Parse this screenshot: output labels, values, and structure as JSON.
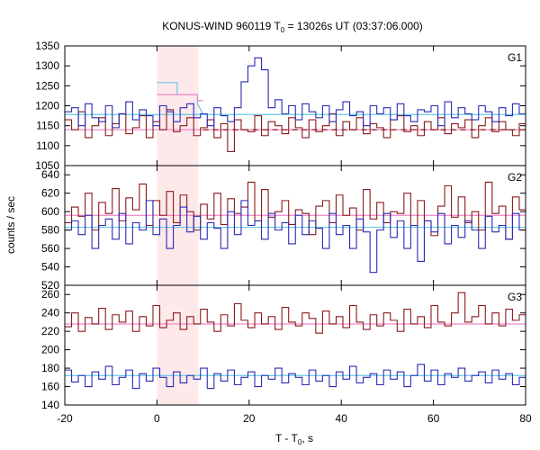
{
  "chart_data": {
    "type": "line",
    "title_main": "KONUS-WIND 960119 T",
    "title_sub": "0",
    "title_rest": " = 13026s UT (03:37:06.000)",
    "ylabel": "counts / sec",
    "xlabel_main": "T - T",
    "xlabel_sub": "0",
    "xlabel_rest": ", s",
    "xlim": [
      -20,
      80
    ],
    "xticks": [
      -20,
      0,
      20,
      40,
      60,
      80
    ],
    "highlight_interval": [
      0,
      9
    ],
    "colors": {
      "red_series": "#8b1a1a",
      "blue_series": "#2b2bb5",
      "red_background": "#ee88cc",
      "blue_background": "#66c8e8",
      "highlight": "#fde8ea"
    },
    "bin_width": 1.472,
    "x_start": -20,
    "panels": [
      {
        "label": "G1",
        "ylim": [
          1050,
          1350
        ],
        "yticks": [
          1050,
          1100,
          1150,
          1200,
          1250,
          1300,
          1350
        ],
        "red_series": [
          1165,
          1140,
          1185,
          1120,
          1150,
          1170,
          1125,
          1155,
          1180,
          1130,
          1145,
          1175,
          1120,
          1160,
          1140,
          1190,
          1135,
          1150,
          1170,
          1125,
          1145,
          1165,
          1120,
          1155,
          1085,
          1165,
          1140,
          1135,
          1175,
          1125,
          1160,
          1150,
          1130,
          1170,
          1145,
          1120,
          1165,
          1135,
          1150,
          1180,
          1125,
          1160,
          1140,
          1170,
          1130,
          1155,
          1145,
          1120,
          1165,
          1175,
          1135,
          1150,
          1125,
          1160,
          1140,
          1170,
          1130,
          1155,
          1145,
          1165,
          1120,
          1150,
          1170,
          1135,
          1160,
          1140,
          1125,
          1155
        ],
        "blue_series": [
          1185,
          1195,
          1150,
          1205,
          1170,
          1160,
          1200,
          1145,
          1180,
          1210,
          1165,
          1190,
          1175,
          1150,
          1200,
          1185,
          1160,
          1195,
          1205,
          1170,
          1180,
          1150,
          1195,
          1175,
          1160,
          1195,
          1260,
          1300,
          1320,
          1290,
          1195,
          1215,
          1180,
          1200,
          1165,
          1205,
          1185,
          1170,
          1200,
          1160,
          1190,
          1210,
          1175,
          1185,
          1150,
          1200,
          1180,
          1195,
          1165,
          1205,
          1175,
          1160,
          1190,
          1185,
          1200,
          1150,
          1210,
          1170,
          1195,
          1180,
          1165,
          1200,
          1185,
          1160,
          1195,
          1175,
          1205,
          1180
        ],
        "red_background": [
          1140,
          1140
        ],
        "blue_background": [
          1178,
          1178
        ],
        "blue_fit": [
          [
            0,
            1258
          ],
          [
            4.4,
            1258
          ],
          [
            4.4,
            1228
          ],
          [
            8.8,
            1228
          ],
          [
            8.8,
            1205
          ],
          [
            10,
            1178
          ]
        ],
        "red_fit": [
          [
            0,
            1228
          ],
          [
            8.8,
            1228
          ],
          [
            8.8,
            1213
          ],
          [
            10,
            1213
          ]
        ]
      },
      {
        "label": "G2",
        "ylim": [
          520,
          650
        ],
        "yticks": [
          520,
          540,
          560,
          580,
          600,
          620,
          640
        ],
        "red_series": [
          588,
          605,
          595,
          620,
          580,
          610,
          598,
          625,
          590,
          615,
          602,
          630,
          585,
          612,
          596,
          622,
          588,
          618,
          600,
          580,
          608,
          592,
          620,
          586,
          614,
          598,
          605,
          632,
          590,
          624,
          594,
          600,
          612,
          586,
          602,
          598,
          575,
          606,
          612,
          588,
          618,
          596,
          604,
          580,
          624,
          592,
          610,
          588,
          600,
          598,
          620,
          585,
          612,
          590,
          574,
          606,
          628,
          594,
          616,
          588,
          600,
          580,
          632,
          598,
          606,
          570,
          616,
          602
        ],
        "blue_series": [
          580,
          590,
          575,
          596,
          560,
          585,
          592,
          570,
          598,
          565,
          588,
          580,
          612,
          575,
          592,
          560,
          585,
          605,
          578,
          595,
          570,
          588,
          582,
          560,
          600,
          575,
          612,
          585,
          590,
          570,
          598,
          580,
          588,
          565,
          596,
          575,
          590,
          582,
          560,
          598,
          575,
          585,
          560,
          592,
          578,
          534,
          580,
          598,
          572,
          590,
          560,
          585,
          546,
          590,
          578,
          598,
          565,
          585,
          572,
          590,
          580,
          560,
          595,
          578,
          585,
          570,
          598,
          580
        ],
        "red_background": [
          596,
          596
        ],
        "blue_background": [
          583,
          583
        ]
      },
      {
        "label": "G3",
        "ylim": [
          140,
          270
        ],
        "yticks": [
          140,
          160,
          180,
          200,
          220,
          240,
          260
        ],
        "red_series": [
          225,
          240,
          220,
          235,
          228,
          245,
          222,
          238,
          230,
          242,
          220,
          236,
          226,
          248,
          224,
          232,
          240,
          222,
          236,
          228,
          244,
          230,
          220,
          238,
          226,
          250,
          232,
          224,
          240,
          228,
          236,
          222,
          246,
          230,
          226,
          240,
          234,
          218,
          242,
          228,
          236,
          224,
          248,
          230,
          222,
          238,
          226,
          240,
          232,
          220,
          244,
          228,
          236,
          224,
          248,
          230,
          226,
          240,
          262,
          230,
          236,
          248,
          228,
          240,
          226,
          244,
          232,
          238
        ],
        "blue_series": [
          178,
          165,
          172,
          160,
          176,
          168,
          182,
          162,
          170,
          178,
          158,
          174,
          166,
          180,
          170,
          160,
          176,
          164,
          172,
          168,
          180,
          158,
          174,
          166,
          178,
          162,
          170,
          176,
          160,
          172,
          168,
          180,
          164,
          174,
          170,
          162,
          178,
          166,
          172,
          160,
          176,
          168,
          182,
          164,
          170,
          174,
          162,
          178,
          168,
          176,
          160,
          172,
          184,
          166,
          178,
          162,
          174,
          170,
          180,
          166,
          172,
          176,
          164,
          178,
          168,
          174,
          162,
          170
        ],
        "red_background": [
          228,
          228
        ],
        "blue_background": [
          172,
          172
        ]
      }
    ]
  }
}
